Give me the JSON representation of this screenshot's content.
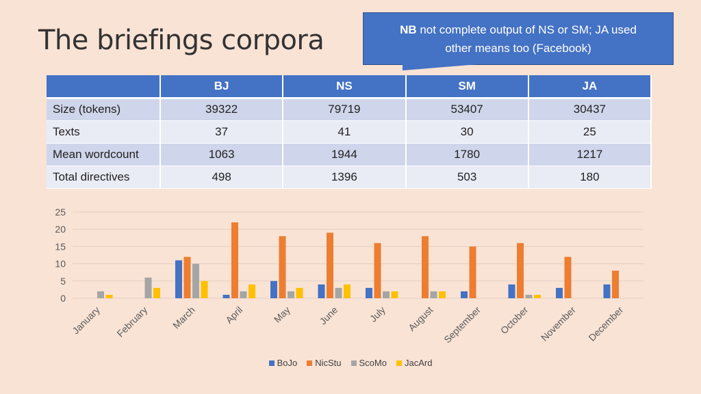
{
  "slide": {
    "title": "The briefings corpora"
  },
  "callout": {
    "bold": "NB",
    "line1": " not complete output of NS or SM; JA used",
    "line2": "other means too (Facebook)"
  },
  "table": {
    "headers": [
      "",
      "BJ",
      "NS",
      "SM",
      "JA"
    ],
    "rows": [
      {
        "label": "Size (tokens)",
        "values": [
          "39322",
          "79719",
          "53407",
          "30437"
        ]
      },
      {
        "label": "Texts",
        "values": [
          "37",
          "41",
          "30",
          "25"
        ]
      },
      {
        "label": "Mean wordcount",
        "values": [
          "1063",
          "1944",
          "1780",
          "1217"
        ]
      },
      {
        "label": "Total directives",
        "values": [
          "498",
          "1396",
          "503",
          "180"
        ]
      }
    ]
  },
  "chart_data": {
    "type": "bar",
    "title": "",
    "xlabel": "",
    "ylabel": "",
    "ylim": [
      0,
      25
    ],
    "yticks": [
      "0",
      "5",
      "10",
      "15",
      "20",
      "25"
    ],
    "grid": true,
    "legend_position": "bottom",
    "categories": [
      "January",
      "February",
      "March",
      "April",
      "May",
      "June",
      "July",
      "August",
      "September",
      "October",
      "November",
      "December"
    ],
    "series": [
      {
        "name": "BoJo",
        "color": "#4472c4",
        "values": [
          0,
          0,
          11,
          1,
          5,
          4,
          3,
          0,
          2,
          4,
          3,
          4
        ]
      },
      {
        "name": "NicStu",
        "color": "#ed7d31",
        "values": [
          0,
          0,
          12,
          22,
          18,
          19,
          16,
          18,
          15,
          16,
          12,
          8
        ]
      },
      {
        "name": "ScoMo",
        "color": "#a5a5a5",
        "values": [
          2,
          6,
          10,
          2,
          2,
          3,
          2,
          2,
          0,
          1,
          0,
          0
        ]
      },
      {
        "name": "JacArd",
        "color": "#ffc000",
        "values": [
          1,
          3,
          5,
          4,
          3,
          4,
          2,
          2,
          0,
          1,
          0,
          0
        ]
      }
    ]
  }
}
